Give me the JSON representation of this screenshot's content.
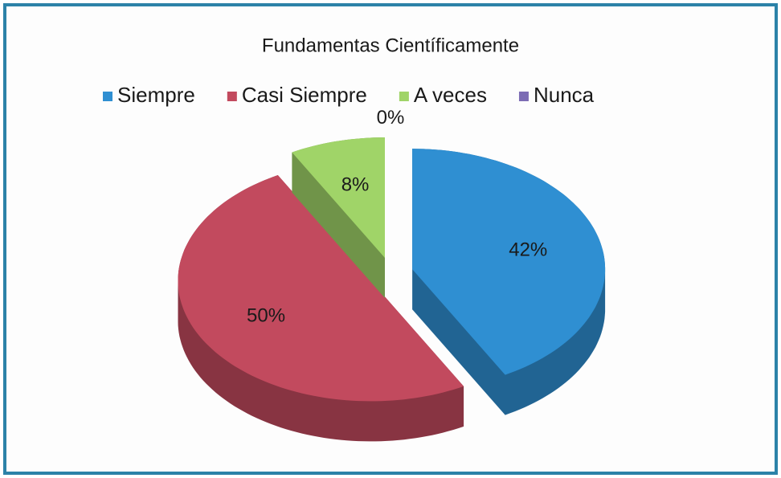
{
  "chart_data": {
    "type": "pie",
    "title": "Fundamentas Científicamente",
    "categories": [
      "Siempre",
      "Casi Siempre",
      "A veces",
      "Nunca"
    ],
    "values": [
      42,
      50,
      8,
      0
    ],
    "value_labels": [
      "42%",
      "50%",
      "8%",
      "0%"
    ],
    "colors": [
      "#2f8fd2",
      "#c24a5e",
      "#a0d468",
      "#7c6cb4"
    ],
    "legend": "top"
  }
}
